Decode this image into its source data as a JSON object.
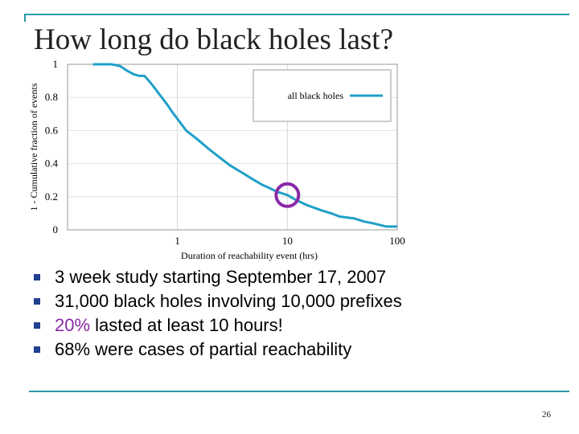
{
  "slide": {
    "title": "How long do black holes last?",
    "page_number": "26",
    "bullets": [
      {
        "text": "3 week study starting September 17, 2007"
      },
      {
        "text": "31,000 black holes involving 10,000 prefixes"
      },
      {
        "highlight": "20%",
        "text": " lasted at least 10 hours!"
      },
      {
        "text": "68% were cases of partial reachability"
      }
    ],
    "colors": {
      "rule": "#2a9aa6",
      "bullet_marker": "#1f3f8f",
      "highlight": "#8a2aa8",
      "series": "#1fa0c8",
      "marker_circle": "#8a2aa8"
    },
    "icons": {
      "bullet": "square-bullet"
    }
  },
  "chart_data": {
    "type": "line",
    "title": "",
    "xlabel": "Duration of reachability event (hrs)",
    "ylabel": "1 - Cumulative fraction of events",
    "x_scale": "log",
    "xlim": [
      0.1,
      100
    ],
    "ylim": [
      0,
      1
    ],
    "x_ticks": [
      1,
      10,
      100
    ],
    "x_tick_labels": [
      "1",
      "10",
      "100"
    ],
    "y_ticks": [
      0,
      0.2,
      0.4,
      0.6,
      0.8,
      1
    ],
    "y_tick_labels": [
      "0",
      "0.2",
      "0.4",
      "0.6",
      "0.8",
      "1"
    ],
    "grid": true,
    "legend_position": "top-right",
    "series": [
      {
        "name": "all black holes",
        "x": [
          0.17,
          0.2,
          0.25,
          0.3,
          0.35,
          0.4,
          0.45,
          0.5,
          0.55,
          0.6,
          0.7,
          0.8,
          0.9,
          1,
          1.2,
          1.5,
          2,
          2.5,
          3,
          4,
          5,
          6,
          7,
          8,
          9,
          10,
          12,
          15,
          20,
          25,
          30,
          40,
          50,
          60,
          80,
          100
        ],
        "y": [
          1.0,
          1.0,
          1.0,
          0.99,
          0.96,
          0.94,
          0.93,
          0.93,
          0.9,
          0.87,
          0.81,
          0.76,
          0.71,
          0.67,
          0.6,
          0.55,
          0.48,
          0.43,
          0.39,
          0.34,
          0.3,
          0.27,
          0.25,
          0.23,
          0.22,
          0.21,
          0.18,
          0.15,
          0.12,
          0.1,
          0.08,
          0.07,
          0.05,
          0.04,
          0.02,
          0.02
        ]
      }
    ],
    "annotations": [
      {
        "type": "circle",
        "x": 10,
        "y": 0.2
      }
    ]
  }
}
